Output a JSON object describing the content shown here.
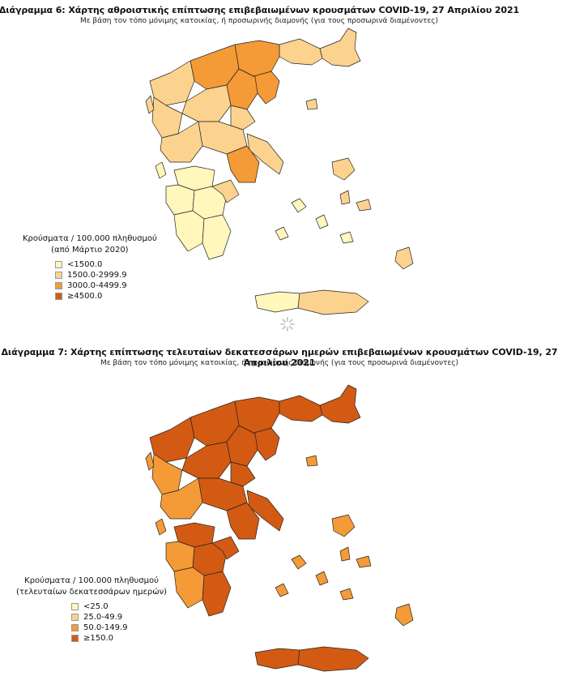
{
  "colors": {
    "class1": "#FFF7BC",
    "class2": "#FBD38F",
    "class3": "#F49A37",
    "class4": "#D35A13"
  },
  "map1": {
    "title": "Διάγραμμα 6: Χάρτης αθροιστικής επίπτωσης επιβεβαιωμένων κρουσμάτων COVID-19, 27 Απριλίου 2021",
    "subtitle": "Με βάση τον τόπο μόνιμης κατοικίας, ή προσωρινής διαμονής (για τους προσωρινά διαμένοντες)",
    "legend": {
      "title_line1": "Κρούσματα / 100.000 πληθυσμού",
      "title_line2": "(από Μάρτιο 2020)",
      "items": [
        {
          "label": "<1500.0",
          "color": "#FFF7BC"
        },
        {
          "label": "1500.0-2999.9",
          "color": "#FBD38F"
        },
        {
          "label": "3000.0-4499.9",
          "color": "#F49A37"
        },
        {
          "label": "≥4500.0",
          "color": "#D35A13"
        }
      ]
    }
  },
  "map2": {
    "title": "Διάγραμμα 7: Χάρτης επίπτωσης τελευταίων δεκατεσσάρων ημερών επιβεβαιωμένων κρουσμάτων COVID-19, 27 Απριλίου 2021",
    "subtitle": "Με βάση τον τόπο μόνιμης κατοικίας, ή προσωρινής διαμονής (για τους προσωρινά διαμένοντες)",
    "legend": {
      "title_line1": "Κρούσματα / 100.000 πληθυσμού",
      "title_line2": "(τελευταίων δεκατεσσάρων ημερών)",
      "items": [
        {
          "label": "<25.0",
          "color": "#FFF7BC"
        },
        {
          "label": "25.0-49.9",
          "color": "#FBD38F"
        },
        {
          "label": "50.0-149.9",
          "color": "#F49A37"
        },
        {
          "label": "≥150.0",
          "color": "#D35A13"
        }
      ]
    }
  }
}
